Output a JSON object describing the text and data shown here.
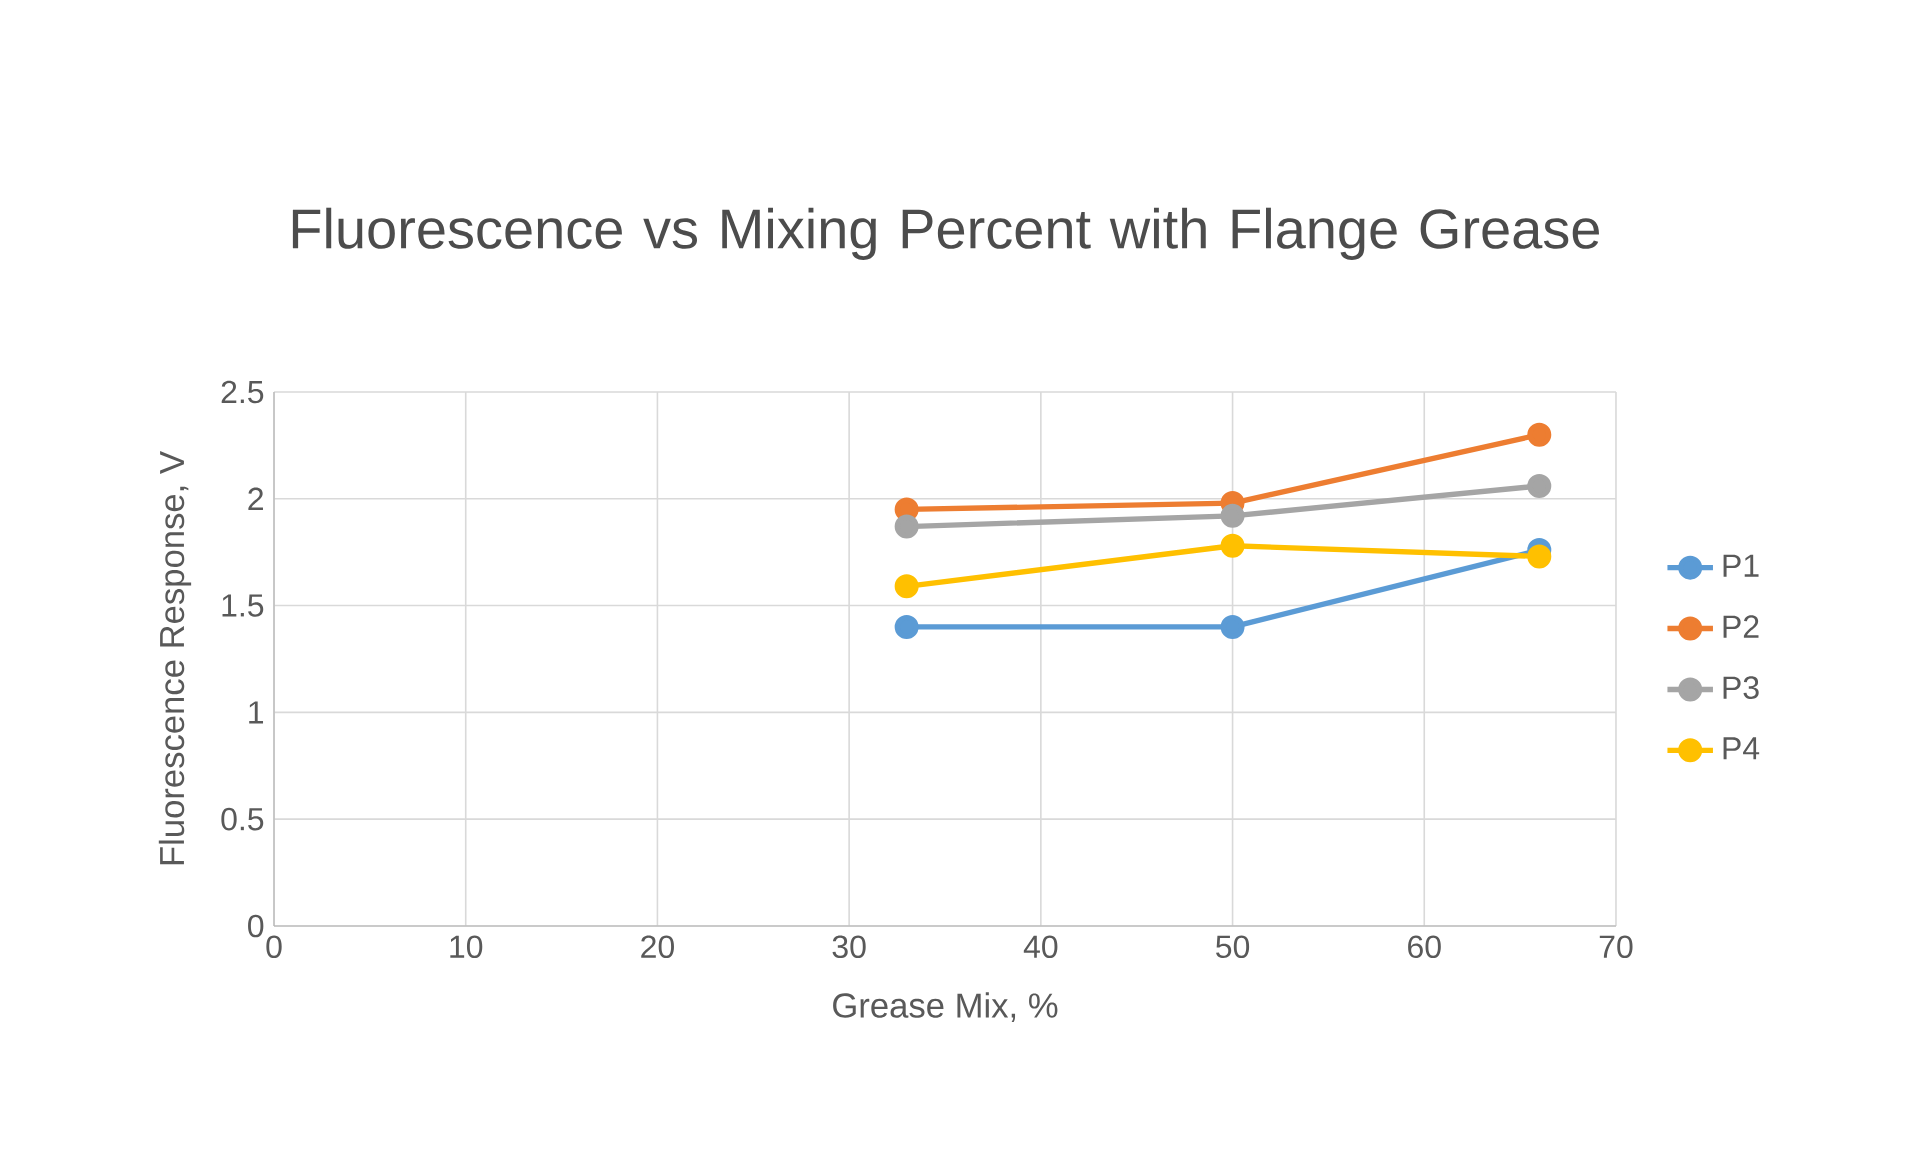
{
  "chart_data": {
    "type": "line",
    "title": "Fluorescence vs Mixing Percent with Flange Grease",
    "xlabel": "Grease Mix, %",
    "ylabel": "Fluorescence Response, V",
    "x": [
      33,
      50,
      66
    ],
    "series": [
      {
        "name": "P1",
        "color": "#5b9bd5",
        "values": [
          1.4,
          1.4,
          1.76
        ]
      },
      {
        "name": "P2",
        "color": "#ed7d31",
        "values": [
          1.95,
          1.98,
          2.3
        ]
      },
      {
        "name": "P3",
        "color": "#a5a5a5",
        "values": [
          1.87,
          1.92,
          2.06
        ]
      },
      {
        "name": "P4",
        "color": "#ffc000",
        "values": [
          1.59,
          1.78,
          1.73
        ]
      }
    ],
    "xlim": [
      0,
      70
    ],
    "xticks": [
      0,
      10,
      20,
      30,
      40,
      50,
      60,
      70
    ],
    "ylim": [
      0,
      2.5
    ],
    "yticks": [
      0,
      0.5,
      1,
      1.5,
      2,
      2.5
    ],
    "grid": true,
    "legend": "right",
    "marker": "circle",
    "line_style": "solid"
  }
}
